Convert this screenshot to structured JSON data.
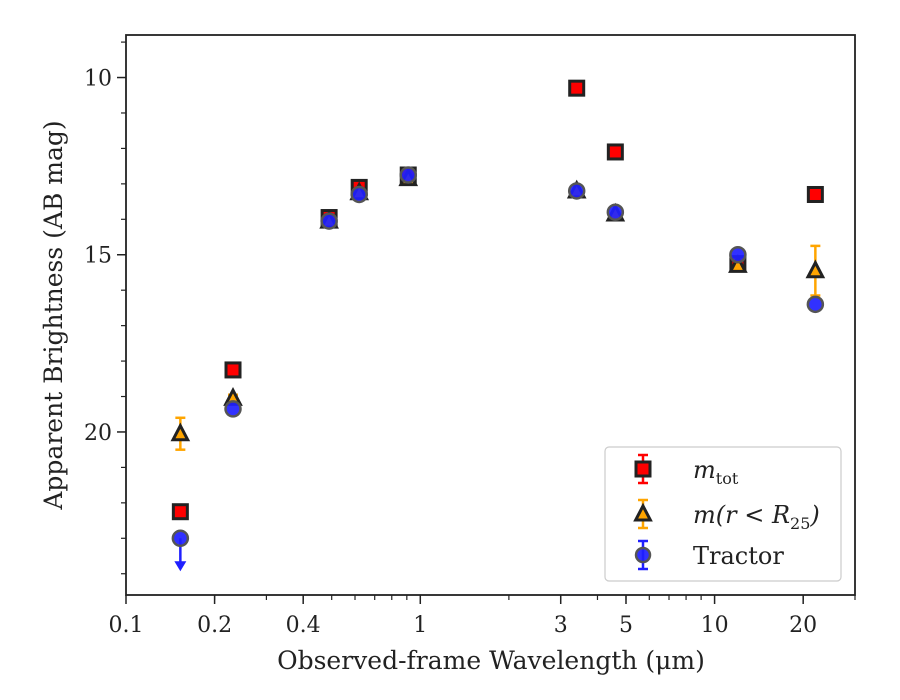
{
  "chart_data": {
    "type": "scatter",
    "xlabel": "Observed-frame Wavelength (μm)",
    "ylabel": "Apparent Brightness (AB mag)",
    "x_scale": "log",
    "xlim": [
      0.1,
      30
    ],
    "ylim": [
      24.6,
      8.8
    ],
    "y_inverted": true,
    "x_ticks": [
      {
        "value": 0.1,
        "label": "0.1"
      },
      {
        "value": 0.2,
        "label": "0.2"
      },
      {
        "value": 0.4,
        "label": "0.4"
      },
      {
        "value": 1,
        "label": "1"
      },
      {
        "value": 3,
        "label": "3"
      },
      {
        "value": 5,
        "label": "5"
      },
      {
        "value": 10,
        "label": "10"
      },
      {
        "value": 20,
        "label": "20"
      }
    ],
    "y_ticks": [
      {
        "value": 10,
        "label": "10"
      },
      {
        "value": 15,
        "label": "15"
      },
      {
        "value": 20,
        "label": "20"
      }
    ],
    "grid": false,
    "legend_position": "lower-right",
    "series": [
      {
        "name": "m_tot",
        "marker": "square",
        "color": "#ff0000",
        "edge_color": "#222222",
        "error_color": "#ff0000",
        "points": [
          {
            "x": 0.153,
            "y": 22.25,
            "yerr": 0
          },
          {
            "x": 0.231,
            "y": 18.25,
            "yerr": 0
          },
          {
            "x": 0.49,
            "y": 13.95,
            "yerr": 0.08
          },
          {
            "x": 0.62,
            "y": 13.1,
            "yerr": 0.08
          },
          {
            "x": 0.91,
            "y": 12.75,
            "yerr": 0.05
          },
          {
            "x": 3.4,
            "y": 10.3,
            "yerr": 0
          },
          {
            "x": 4.6,
            "y": 12.1,
            "yerr": 0
          },
          {
            "x": 12.0,
            "y": 15.25,
            "yerr": 0
          },
          {
            "x": 22.0,
            "y": 13.3,
            "yerr": 0
          }
        ]
      },
      {
        "name": "m(r < R25)",
        "marker": "triangle",
        "color": "#ffa500",
        "edge_color": "#222222",
        "error_color": "#ffa500",
        "points": [
          {
            "x": 0.153,
            "y": 20.05,
            "yerr": 0.45
          },
          {
            "x": 0.231,
            "y": 19.05,
            "yerr": 0.1
          },
          {
            "x": 0.49,
            "y": 14.05,
            "yerr": 0
          },
          {
            "x": 0.62,
            "y": 13.25,
            "yerr": 0
          },
          {
            "x": 0.91,
            "y": 12.85,
            "yerr": 0
          },
          {
            "x": 3.4,
            "y": 13.2,
            "yerr": 0
          },
          {
            "x": 4.6,
            "y": 13.85,
            "yerr": 0
          },
          {
            "x": 12.0,
            "y": 15.3,
            "yerr": 0.15
          },
          {
            "x": 22.0,
            "y": 15.45,
            "yerr": 0.7
          }
        ]
      },
      {
        "name": "Tractor",
        "marker": "circle",
        "color": "#1f1fff",
        "edge_color": "#555555",
        "error_color": "#1f1fff",
        "points": [
          {
            "x": 0.153,
            "y": 23.0,
            "yerr": 0,
            "upper_limit": true
          },
          {
            "x": 0.231,
            "y": 19.35,
            "yerr": 0
          },
          {
            "x": 0.49,
            "y": 14.05,
            "yerr": 0
          },
          {
            "x": 0.62,
            "y": 13.3,
            "yerr": 0
          },
          {
            "x": 0.91,
            "y": 12.75,
            "yerr": 0
          },
          {
            "x": 3.4,
            "y": 13.2,
            "yerr": 0
          },
          {
            "x": 4.6,
            "y": 13.8,
            "yerr": 0
          },
          {
            "x": 12.0,
            "y": 15.0,
            "yerr": 0
          },
          {
            "x": 22.0,
            "y": 16.4,
            "yerr": 0
          }
        ]
      }
    ]
  },
  "legend": {
    "items": [
      {
        "main": "m",
        "sub": "tot",
        "rest": ""
      },
      {
        "main": "m(r < R",
        "sub": "25",
        "rest": ")"
      },
      {
        "main": "Tractor",
        "sub": "",
        "rest": ""
      }
    ]
  }
}
